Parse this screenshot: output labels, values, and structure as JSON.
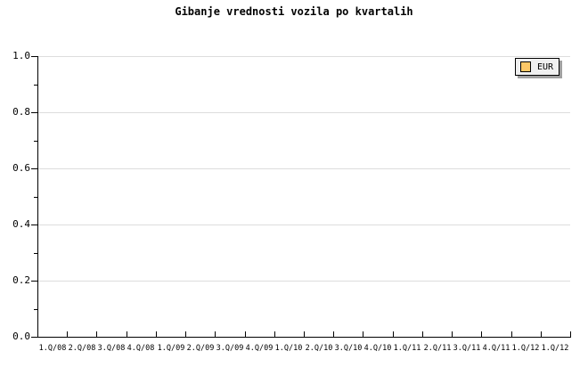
{
  "chart_data": {
    "type": "line",
    "title": "Gibanje vrednosti vozila po kvartalih",
    "categories": [
      "1.Q/08",
      "2.Q/08",
      "3.Q/08",
      "4.Q/08",
      "1.Q/09",
      "2.Q/09",
      "3.Q/09",
      "4.Q/09",
      "1.Q/10",
      "2.Q/10",
      "3.Q/10",
      "4.Q/10",
      "1.Q/11",
      "2.Q/11",
      "3.Q/11",
      "4.Q/11",
      "1.Q/12",
      "1.Q/12"
    ],
    "series": [
      {
        "name": "EUR",
        "values": [],
        "color": "#FDC868"
      }
    ],
    "xlabel": "",
    "ylabel": "",
    "ylim": [
      0.0,
      1.0
    ],
    "y_major_ticks": [
      1.0,
      0.8,
      0.6,
      0.4,
      0.2,
      0.0
    ],
    "y_tick_labels": [
      "1.0",
      "0.8",
      "0.6",
      "0.4",
      "0.2",
      "0.0"
    ],
    "y_minor_ticks": [
      0.9,
      0.7,
      0.5,
      0.3,
      0.1
    ],
    "grid": {
      "horizontal_major": true,
      "vertical": false
    },
    "legend": {
      "position": "top-right",
      "entries": [
        {
          "label": "EUR",
          "swatch_color": "#FDC868"
        }
      ]
    }
  },
  "colors": {
    "background": "#ffffff",
    "text": "#000000",
    "axis": "#000000",
    "gridline": "#dddddd",
    "legend_bg": "#f0f0f0",
    "legend_border": "#000000",
    "legend_shadow": "#a0a0a0",
    "series_eur": "#FDC868"
  }
}
